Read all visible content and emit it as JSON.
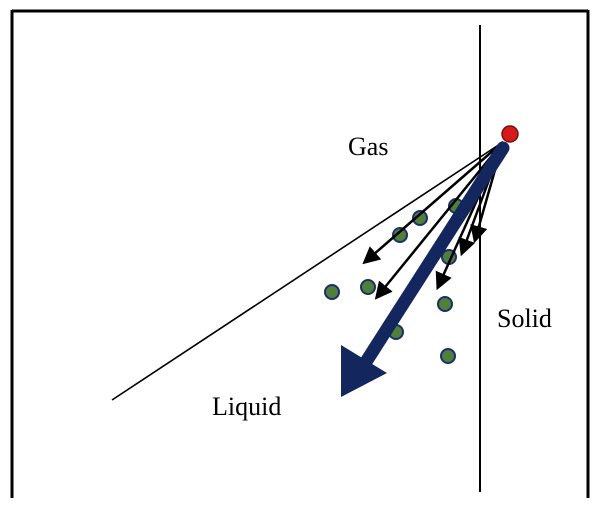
{
  "labels": {
    "gas": "Gas",
    "solid": "Solid",
    "liquid": "Liquid"
  },
  "colors": {
    "frame": "#000000",
    "phase_boundary": "#000000",
    "dominant_arrow": "#13265e",
    "small_arrows": "#000000",
    "molecule_fill": "#4f7f3a",
    "molecule_stroke": "#1b2f6b",
    "source_atom": "#d61a1a"
  },
  "icons": {
    "source_atom": "red-circle",
    "molecules": "green-circle",
    "arrows": "arrow"
  }
}
